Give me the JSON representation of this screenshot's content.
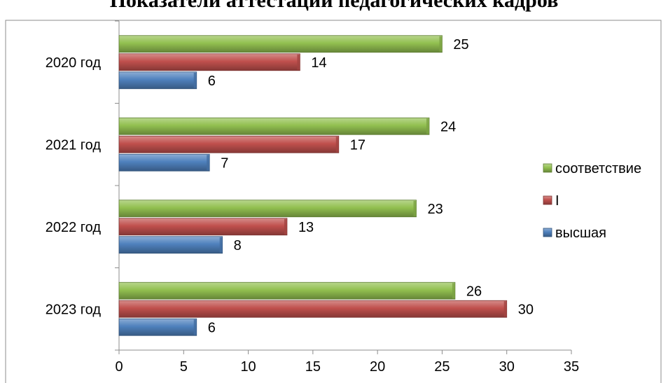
{
  "chart_data": {
    "type": "bar",
    "orientation": "horizontal",
    "title": "Показатели аттестации педагогических кадров",
    "categories": [
      "2020 год",
      "2021 год",
      "2022 год",
      "2023 год"
    ],
    "series": [
      {
        "name": "соответствие",
        "values": [
          25,
          24,
          23,
          26
        ],
        "color": "#92c050"
      },
      {
        "name": "I",
        "values": [
          14,
          17,
          13,
          30
        ],
        "color": "#c0504d"
      },
      {
        "name": "высшая",
        "values": [
          6,
          7,
          8,
          6
        ],
        "color": "#4f81bd"
      }
    ],
    "xlim": [
      0,
      35
    ],
    "xticks": [
      0,
      5,
      10,
      15,
      20,
      25,
      30,
      35
    ],
    "xlabel": "",
    "ylabel": "",
    "legend": "right",
    "grid": false
  }
}
